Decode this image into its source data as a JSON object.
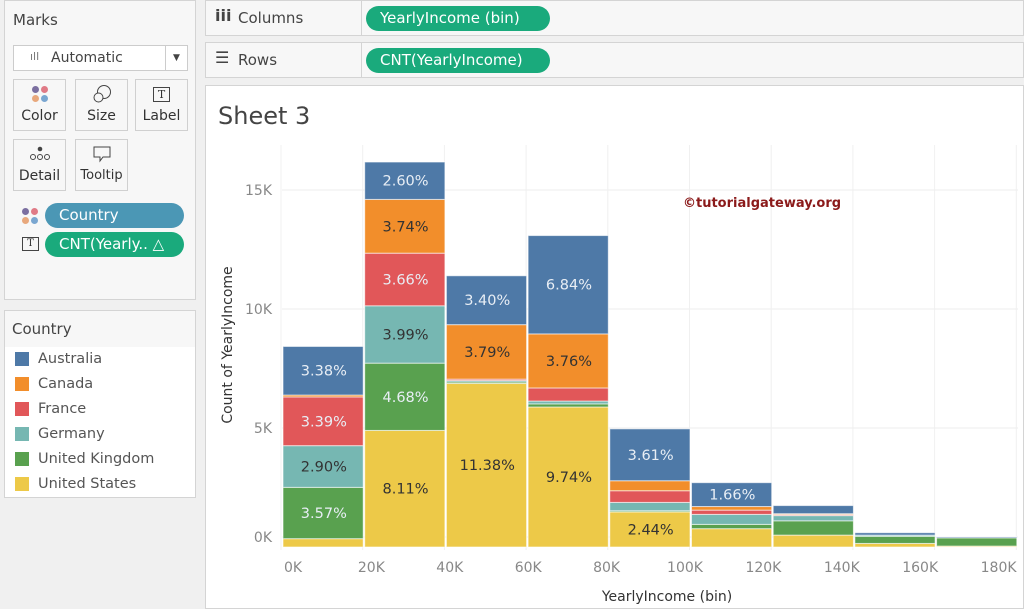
{
  "marks": {
    "title": "Marks",
    "mark_type": "Automatic",
    "buttons": [
      "Color",
      "Size",
      "Label",
      "Detail",
      "Tooltip"
    ],
    "pills": [
      {
        "label": "Country",
        "color": "#4b97b5",
        "icon": "color-icon"
      },
      {
        "label": "CNT(Yearly..  △",
        "color": "#1aaa7c",
        "icon": "label-icon"
      }
    ]
  },
  "legend": {
    "title": "Country",
    "items": [
      {
        "label": "Australia",
        "color": "#4e79a7"
      },
      {
        "label": "Canada",
        "color": "#f28e2b"
      },
      {
        "label": "France",
        "color": "#e15759"
      },
      {
        "label": "Germany",
        "color": "#76b7b2"
      },
      {
        "label": "United Kingdom",
        "color": "#59a14f"
      },
      {
        "label": "United States",
        "color": "#edc948"
      }
    ]
  },
  "shelves": {
    "columns_label": "Columns",
    "columns_pill": "YearlyIncome (bin)",
    "rows_label": "Rows",
    "rows_pill": "CNT(YearlyIncome)",
    "pill_color": "#1aaa7c"
  },
  "sheet": {
    "title": "Sheet 3",
    "watermark": "©tutorialgateway.org"
  },
  "chart_data": {
    "type": "bar",
    "stacked": true,
    "xlabel": "YearlyIncome (bin)",
    "ylabel": "Count of YearlyIncome",
    "categories": [
      "0K",
      "20K",
      "40K",
      "60K",
      "80K",
      "100K",
      "120K",
      "140K",
      "160K"
    ],
    "x_ticks": [
      "0K",
      "20K",
      "40K",
      "60K",
      "80K",
      "100K",
      "120K",
      "140K",
      "160K",
      "180K"
    ],
    "y_ticks": [
      "0K",
      "5K",
      "10K",
      "15K"
    ],
    "ylim": [
      0,
      15000
    ],
    "grid": true,
    "legend": "left-sidebar",
    "series": [
      {
        "name": "United States",
        "color": "#edc948",
        "values": [
          350,
          4898,
          6873,
          5883,
          1474,
          770,
          500,
          150,
          40
        ],
        "labels": [
          null,
          "8.11%",
          "11.38%",
          "9.74%",
          "2.44%",
          null,
          null,
          null,
          null
        ]
      },
      {
        "name": "United Kingdom",
        "color": "#59a14f",
        "values": [
          2156,
          2827,
          60,
          130,
          50,
          180,
          600,
          300,
          350
        ],
        "labels": [
          "3.57%",
          "4.68%",
          null,
          null,
          null,
          null,
          null,
          null,
          null
        ]
      },
      {
        "name": "Germany",
        "color": "#76b7b2",
        "values": [
          1752,
          2410,
          60,
          120,
          350,
          420,
          220,
          50,
          0
        ],
        "labels": [
          "2.90%",
          "3.99%",
          null,
          null,
          null,
          null,
          null,
          null,
          null
        ]
      },
      {
        "name": "France",
        "color": "#e15759",
        "values": [
          2047,
          2211,
          60,
          550,
          490,
          180,
          40,
          0,
          0
        ],
        "labels": [
          "3.39%",
          "3.66%",
          null,
          null,
          null,
          null,
          null,
          null,
          null
        ]
      },
      {
        "name": "Canada",
        "color": "#f28e2b",
        "values": [
          80,
          2259,
          2289,
          2271,
          420,
          150,
          40,
          0,
          0
        ],
        "labels": [
          null,
          "3.74%",
          "3.79%",
          "3.76%",
          null,
          null,
          null,
          null,
          null
        ]
      },
      {
        "name": "Australia",
        "color": "#4e79a7",
        "values": [
          2041,
          1570,
          2054,
          4131,
          2180,
          1003,
          340,
          100,
          30
        ],
        "labels": [
          "3.38%",
          "2.60%",
          "3.40%",
          "6.84%",
          "3.61%",
          "1.66%",
          null,
          null,
          null
        ]
      }
    ]
  }
}
